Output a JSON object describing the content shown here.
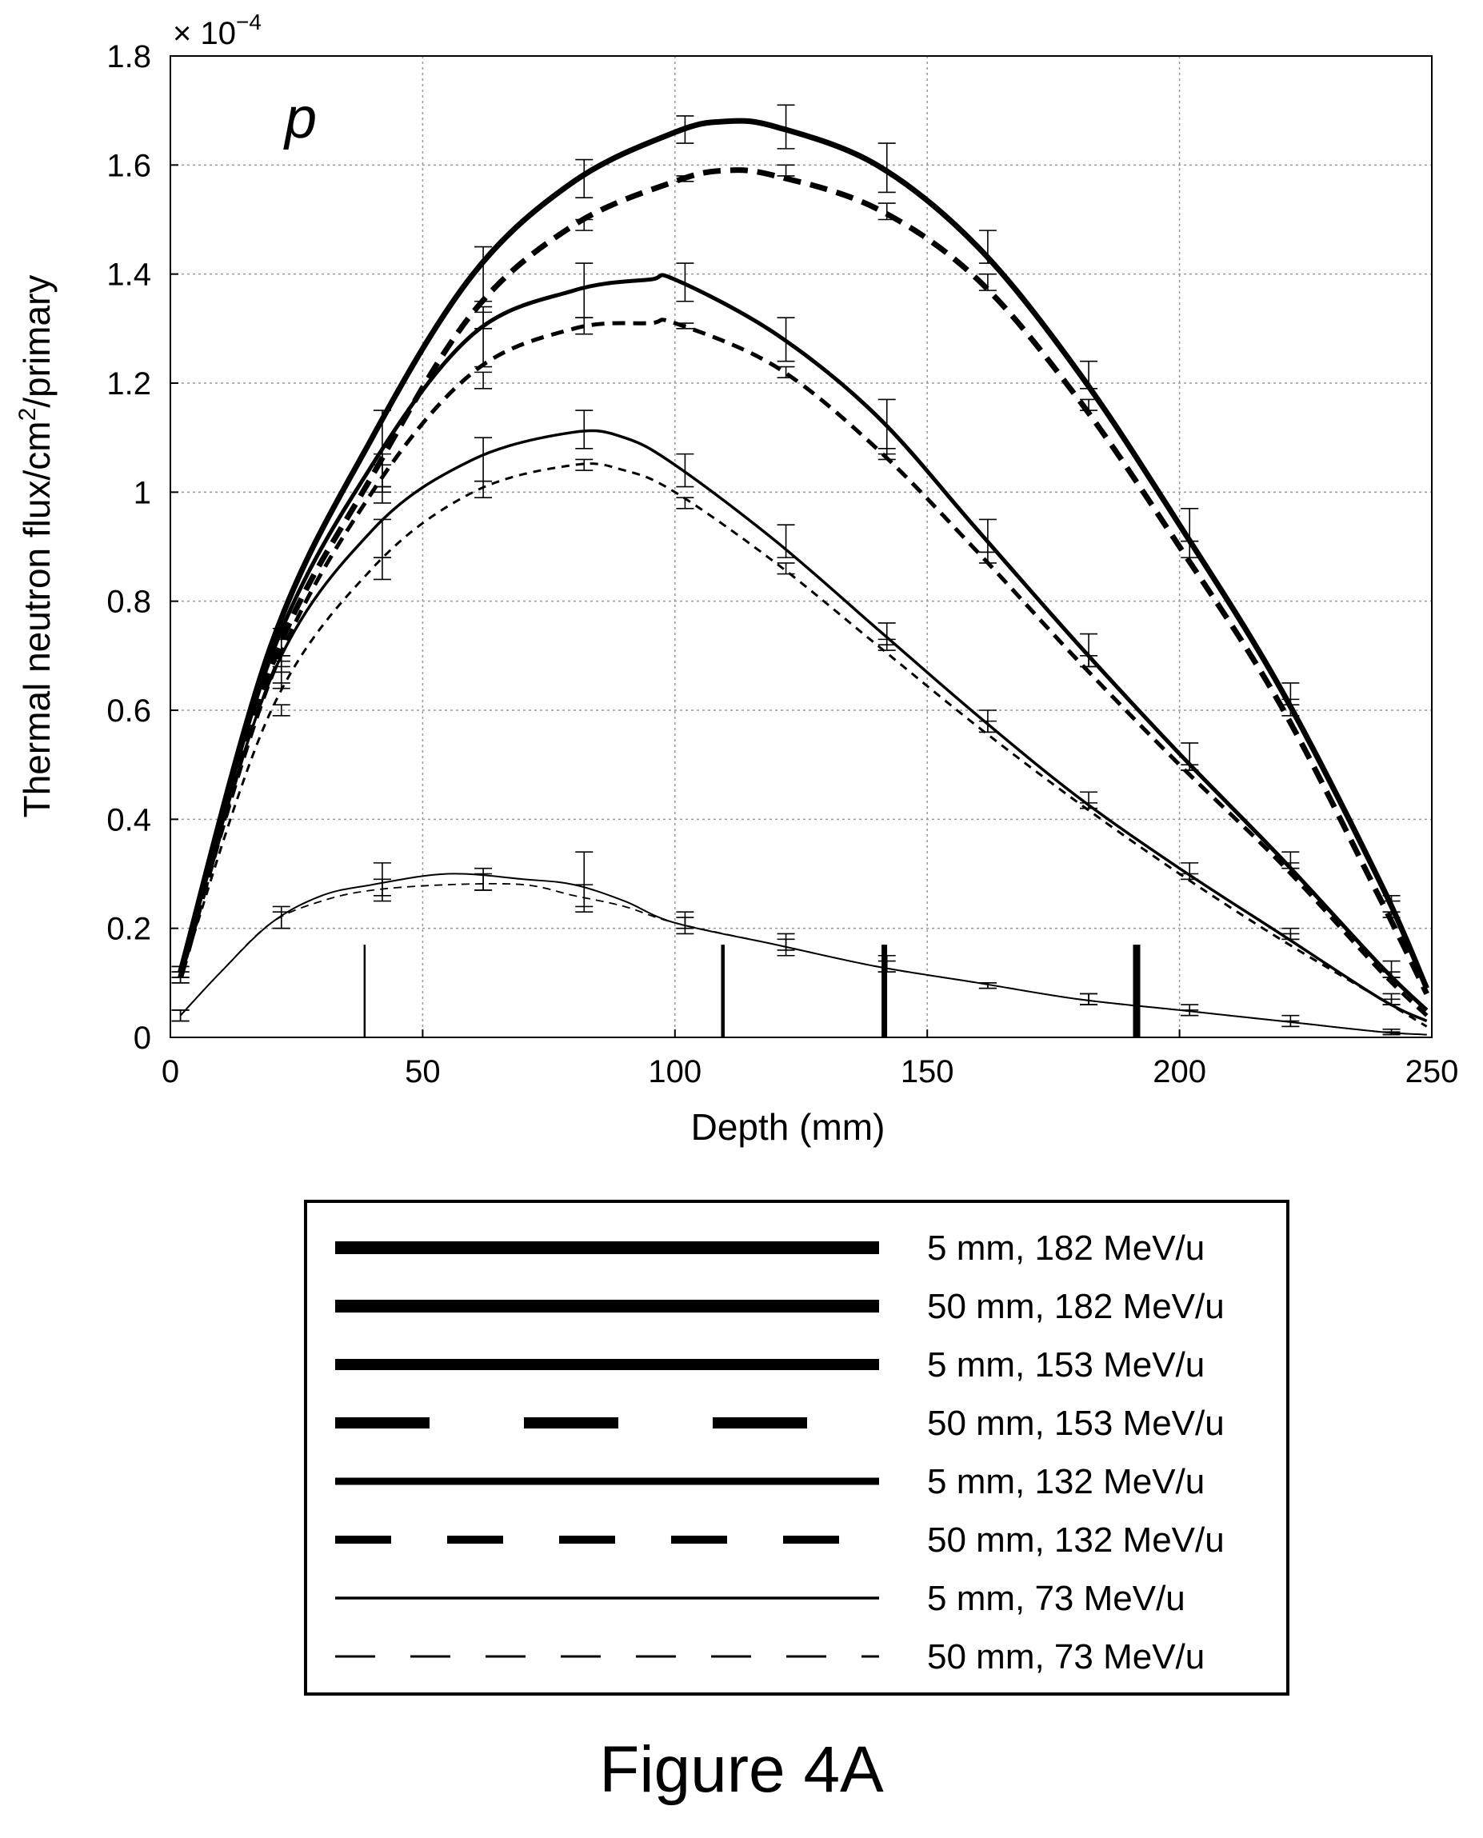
{
  "figure_caption": "Figure 4A",
  "chart_data": {
    "type": "line",
    "annotation": "p",
    "multiplier_label": "× 10",
    "multiplier_exponent": "−4",
    "xlabel": "Depth (mm)",
    "ylabel": "Thermal neutron flux/cm",
    "ylabel_sup": "2",
    "ylabel_suffix": "/primary",
    "xlim": [
      0,
      250
    ],
    "ylim": [
      0,
      1.8
    ],
    "x_ticks": [
      "0",
      "50",
      "100",
      "150",
      "200",
      "250"
    ],
    "y_ticks": [
      "0",
      "0.2",
      "0.4",
      "0.6",
      "0.8",
      "1",
      "1.2",
      "1.4",
      "1.6",
      "1.8"
    ],
    "grid": true,
    "vertical_markers": [
      {
        "x": 38.5,
        "height": 0.17
      },
      {
        "x": 109.5,
        "height": 0.17
      },
      {
        "x": 141.5,
        "height": 0.17
      },
      {
        "x": 191.5,
        "height": 0.17
      }
    ],
    "series": [
      {
        "name": "5 mm, 182 MeV/u",
        "x": [
          2,
          20,
          40,
          60,
          80,
          100,
          110,
          120,
          140,
          160,
          180,
          200,
          220,
          240,
          249
        ],
        "y": [
          0.12,
          0.72,
          1.1,
          1.4,
          1.57,
          1.66,
          1.68,
          1.67,
          1.6,
          1.45,
          1.22,
          0.94,
          0.64,
          0.28,
          0.09
        ],
        "err_x": [
          2,
          22,
          42,
          62,
          82,
          102,
          122,
          142,
          162,
          182,
          202,
          222,
          242
        ],
        "err_lo": [
          0.11,
          0.7,
          1.05,
          1.35,
          1.54,
          1.64,
          1.63,
          1.55,
          1.42,
          1.19,
          0.91,
          0.61,
          0.23
        ],
        "err_hi": [
          0.13,
          0.75,
          1.15,
          1.45,
          1.61,
          1.69,
          1.71,
          1.64,
          1.48,
          1.24,
          0.97,
          0.65,
          0.26
        ]
      },
      {
        "name": "50 mm, 182 MeV/u",
        "x": [
          2,
          20,
          40,
          60,
          80,
          100,
          110,
          120,
          140,
          160,
          180,
          200,
          220,
          240,
          249
        ],
        "y": [
          0.11,
          0.68,
          1.03,
          1.33,
          1.49,
          1.57,
          1.59,
          1.58,
          1.52,
          1.39,
          1.17,
          0.9,
          0.61,
          0.25,
          0.08
        ],
        "err_x": [
          2,
          22,
          42,
          62,
          82,
          102,
          122,
          142,
          162,
          182,
          202,
          222,
          242
        ],
        "err_lo": [
          0.1,
          0.67,
          1.01,
          1.3,
          1.48,
          1.57,
          1.58,
          1.5,
          1.37,
          1.15,
          0.88,
          0.59,
          0.22
        ],
        "err_hi": [
          0.12,
          0.7,
          1.05,
          1.34,
          1.5,
          1.58,
          1.6,
          1.53,
          1.4,
          1.17,
          0.91,
          0.62,
          0.25
        ]
      },
      {
        "name": "5 mm, 153 MeV/u",
        "x": [
          2,
          20,
          40,
          60,
          80,
          95,
          100,
          120,
          140,
          160,
          180,
          200,
          220,
          240,
          249
        ],
        "y": [
          0.12,
          0.7,
          1.05,
          1.29,
          1.37,
          1.39,
          1.39,
          1.29,
          1.14,
          0.93,
          0.72,
          0.52,
          0.33,
          0.13,
          0.05
        ],
        "err_x": [
          2,
          22,
          42,
          62,
          82,
          102,
          122,
          142,
          162,
          182,
          202,
          222,
          242
        ],
        "err_lo": [
          0.11,
          0.68,
          1.0,
          1.23,
          1.32,
          1.35,
          1.24,
          1.07,
          0.89,
          0.68,
          0.49,
          0.31,
          0.11
        ],
        "err_hi": [
          0.13,
          0.73,
          1.07,
          1.33,
          1.42,
          1.42,
          1.32,
          1.17,
          0.95,
          0.74,
          0.54,
          0.34,
          0.14
        ]
      },
      {
        "name": "50 mm, 153 MeV/u",
        "x": [
          2,
          20,
          40,
          60,
          80,
          95,
          100,
          120,
          140,
          160,
          180,
          200,
          220,
          240,
          249
        ],
        "y": [
          0.11,
          0.66,
          1.0,
          1.22,
          1.3,
          1.31,
          1.31,
          1.23,
          1.08,
          0.89,
          0.69,
          0.5,
          0.32,
          0.12,
          0.04
        ],
        "err_x": [
          2,
          22,
          42,
          62,
          82,
          102,
          122,
          142,
          162,
          182,
          202,
          222,
          242
        ],
        "err_lo": [
          0.1,
          0.65,
          0.98,
          1.19,
          1.29,
          1.3,
          1.21,
          1.06,
          0.87,
          0.68,
          0.49,
          0.31,
          0.11
        ],
        "err_hi": [
          0.12,
          0.67,
          1.01,
          1.22,
          1.32,
          1.31,
          1.23,
          1.08,
          0.89,
          0.7,
          0.5,
          0.32,
          0.12
        ]
      },
      {
        "name": "5 mm, 132 MeV/u",
        "x": [
          2,
          20,
          40,
          60,
          80,
          90,
          100,
          120,
          140,
          160,
          180,
          200,
          220,
          240,
          249
        ],
        "y": [
          0.12,
          0.66,
          0.93,
          1.06,
          1.11,
          1.1,
          1.05,
          0.91,
          0.75,
          0.59,
          0.44,
          0.31,
          0.19,
          0.07,
          0.03
        ],
        "err_x": [
          2,
          22,
          42,
          62,
          82,
          102,
          122,
          142,
          162,
          182,
          202,
          222,
          242
        ],
        "err_lo": [
          0.11,
          0.64,
          0.88,
          1.02,
          1.08,
          1.01,
          0.88,
          0.72,
          0.56,
          0.42,
          0.29,
          0.18,
          0.06
        ],
        "err_hi": [
          0.13,
          0.69,
          0.95,
          1.1,
          1.15,
          1.07,
          0.94,
          0.76,
          0.6,
          0.45,
          0.32,
          0.2,
          0.08
        ]
      },
      {
        "name": "50 mm, 132 MeV/u",
        "x": [
          2,
          20,
          40,
          60,
          80,
          90,
          100,
          120,
          140,
          160,
          180,
          200,
          220,
          240,
          249
        ],
        "y": [
          0.11,
          0.6,
          0.86,
          1.0,
          1.05,
          1.04,
          1.0,
          0.87,
          0.72,
          0.57,
          0.43,
          0.3,
          0.18,
          0.07,
          0.02
        ],
        "err_x": [
          2,
          22,
          42,
          62,
          82,
          102,
          122,
          142,
          162,
          182,
          202,
          222,
          242
        ],
        "err_lo": [
          0.1,
          0.59,
          0.84,
          0.99,
          1.04,
          0.97,
          0.85,
          0.71,
          0.56,
          0.42,
          0.29,
          0.18,
          0.06
        ],
        "err_hi": [
          0.12,
          0.61,
          0.88,
          1.02,
          1.06,
          0.99,
          0.87,
          0.73,
          0.58,
          0.43,
          0.3,
          0.19,
          0.07
        ]
      },
      {
        "name": "5 mm, 73 MeV/u",
        "x": [
          2,
          10,
          20,
          30,
          40,
          55,
          70,
          80,
          90,
          100,
          120,
          140,
          160,
          180,
          200,
          220,
          240,
          249
        ],
        "y": [
          0.04,
          0.12,
          0.21,
          0.26,
          0.28,
          0.3,
          0.29,
          0.28,
          0.25,
          0.21,
          0.17,
          0.13,
          0.1,
          0.07,
          0.05,
          0.03,
          0.01,
          0.005
        ],
        "err_x": [
          2,
          22,
          42,
          62,
          82,
          102,
          122,
          142,
          162,
          182,
          202,
          222,
          242
        ],
        "err_lo": [
          0.03,
          0.2,
          0.26,
          0.27,
          0.23,
          0.19,
          0.15,
          0.12,
          0.09,
          0.06,
          0.04,
          0.02,
          0.005
        ],
        "err_hi": [
          0.05,
          0.24,
          0.32,
          0.31,
          0.34,
          0.23,
          0.19,
          0.15,
          0.1,
          0.08,
          0.06,
          0.04,
          0.015
        ]
      },
      {
        "name": "50 mm, 73 MeV/u",
        "x": [
          2,
          10,
          20,
          30,
          40,
          55,
          70,
          80,
          90,
          100,
          120,
          140,
          160,
          180,
          200,
          220,
          240,
          249
        ],
        "y": [
          0.04,
          0.12,
          0.21,
          0.25,
          0.27,
          0.28,
          0.28,
          0.26,
          0.24,
          0.21,
          0.17,
          0.13,
          0.1,
          0.07,
          0.05,
          0.03,
          0.01,
          0.005
        ],
        "err_x": [
          2,
          22,
          42,
          62,
          82,
          102,
          122,
          142,
          162,
          182,
          202,
          222,
          242
        ],
        "err_lo": [
          0.03,
          0.2,
          0.25,
          0.27,
          0.24,
          0.2,
          0.16,
          0.12,
          0.09,
          0.06,
          0.04,
          0.02,
          0.005
        ],
        "err_hi": [
          0.05,
          0.23,
          0.29,
          0.3,
          0.28,
          0.22,
          0.18,
          0.14,
          0.1,
          0.08,
          0.05,
          0.03,
          0.01
        ]
      }
    ]
  },
  "legend": {
    "entries": [
      {
        "label": "5 mm, 182 MeV/u",
        "color": "#000000"
      },
      {
        "label": "50 mm, 182 MeV/u",
        "color": "#000000"
      },
      {
        "label": "5 mm, 153 MeV/u",
        "color": "#000000"
      },
      {
        "label": "50 mm, 153 MeV/u",
        "color": "#000000"
      },
      {
        "label": "5 mm, 132 MeV/u",
        "color": "#000000"
      },
      {
        "label": "50 mm, 132 MeV/u",
        "color": "#000000"
      },
      {
        "label": "5 mm, 73 MeV/u",
        "color": "#000000"
      },
      {
        "label": "50 mm, 73 MeV/u",
        "color": "#000000"
      }
    ]
  }
}
